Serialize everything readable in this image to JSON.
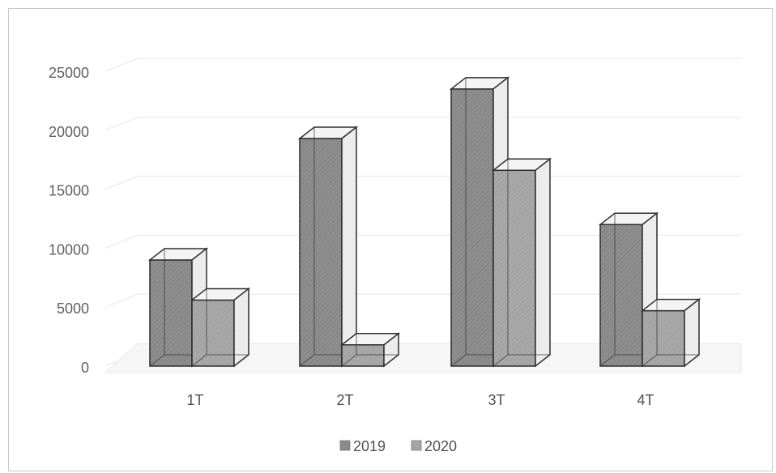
{
  "chart_data": {
    "type": "bar",
    "categories": [
      "1T",
      "2T",
      "3T",
      "4T"
    ],
    "series": [
      {
        "name": "2019",
        "values": [
          9000,
          19300,
          23500,
          12000
        ]
      },
      {
        "name": "2020",
        "values": [
          5600,
          1800,
          16600,
          4700
        ]
      }
    ],
    "y_ticks": [
      "0",
      "5000",
      "10000",
      "15000",
      "20000",
      "25000"
    ],
    "ylim": [
      0,
      25000
    ],
    "grid": true,
    "legend_position": "bottom",
    "colors": {
      "2019": "#8f8f8f",
      "2020": "#a6a6a6",
      "outline": "#2e2e2e",
      "grid": "#e6e6e6"
    }
  }
}
